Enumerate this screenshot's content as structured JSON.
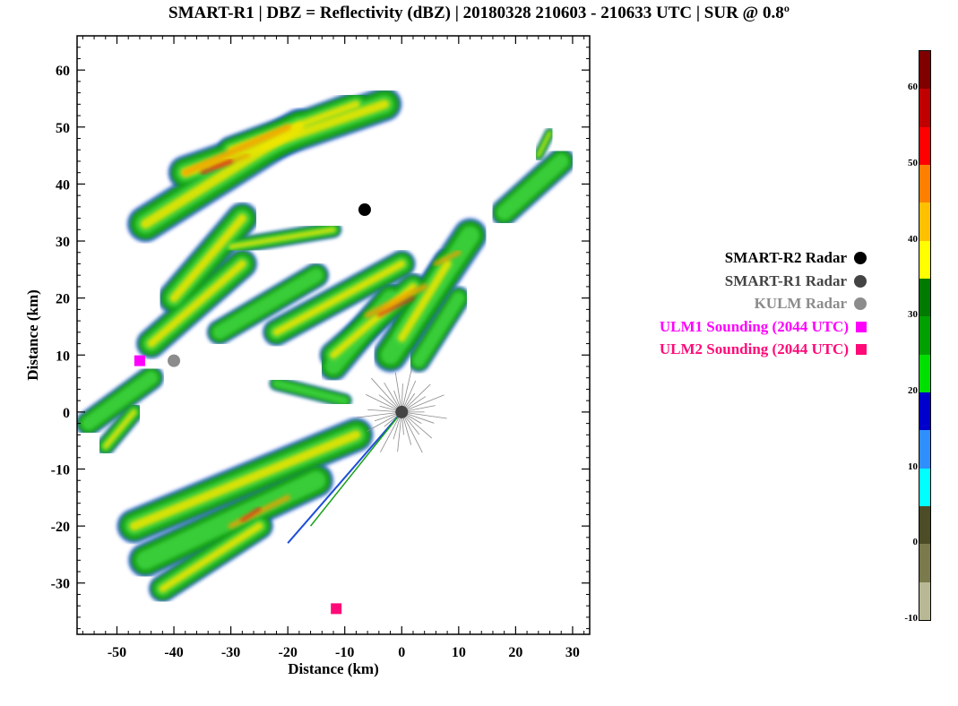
{
  "title": "SMART-R1 | DBZ = Reflectivity (dBZ) | 20180328 210603 - 210633 UTC | SUR @ 0.8º",
  "chart_data": {
    "type": "radar-ppi",
    "xlabel": "Distance (km)",
    "ylabel": "Distance (km)",
    "xlim": [
      -57,
      33
    ],
    "ylim": [
      -39,
      66
    ],
    "xticks": [
      -50,
      -40,
      -30,
      -20,
      -10,
      0,
      10,
      20,
      30
    ],
    "yticks": [
      60,
      50,
      40,
      30,
      20,
      10,
      0,
      -10,
      -20,
      -30
    ],
    "markers": [
      {
        "name": "SMART-R2 Radar",
        "x": -6.5,
        "y": 35.5,
        "shape": "circle",
        "color": "#000000"
      },
      {
        "name": "SMART-R1 Radar",
        "x": 0,
        "y": 0,
        "shape": "circle",
        "color": "#444444"
      },
      {
        "name": "KULM Radar",
        "x": -40,
        "y": 9,
        "shape": "circle",
        "color": "#8c8c8c"
      },
      {
        "name": "ULM1 Sounding (2044 UTC)",
        "x": -46,
        "y": 9,
        "shape": "square",
        "color": "#ff00ff"
      },
      {
        "name": "ULM2 Sounding (2044 UTC)",
        "x": -11.5,
        "y": -34.5,
        "shape": "square",
        "color": "#ff0a78"
      }
    ],
    "colorbar": {
      "min": -10,
      "max": 65,
      "ticks": [
        60,
        50,
        40,
        30,
        20,
        10,
        0,
        -10
      ],
      "colors": [
        "#800000",
        "#c00000",
        "#ff0000",
        "#ff8000",
        "#ffc000",
        "#ffff00",
        "#007a00",
        "#00a000",
        "#00e000",
        "#0000cc",
        "#2f8fff",
        "#00ffff",
        "#4c4c26",
        "#7a7a4c",
        "#b8b894"
      ]
    }
  }
}
